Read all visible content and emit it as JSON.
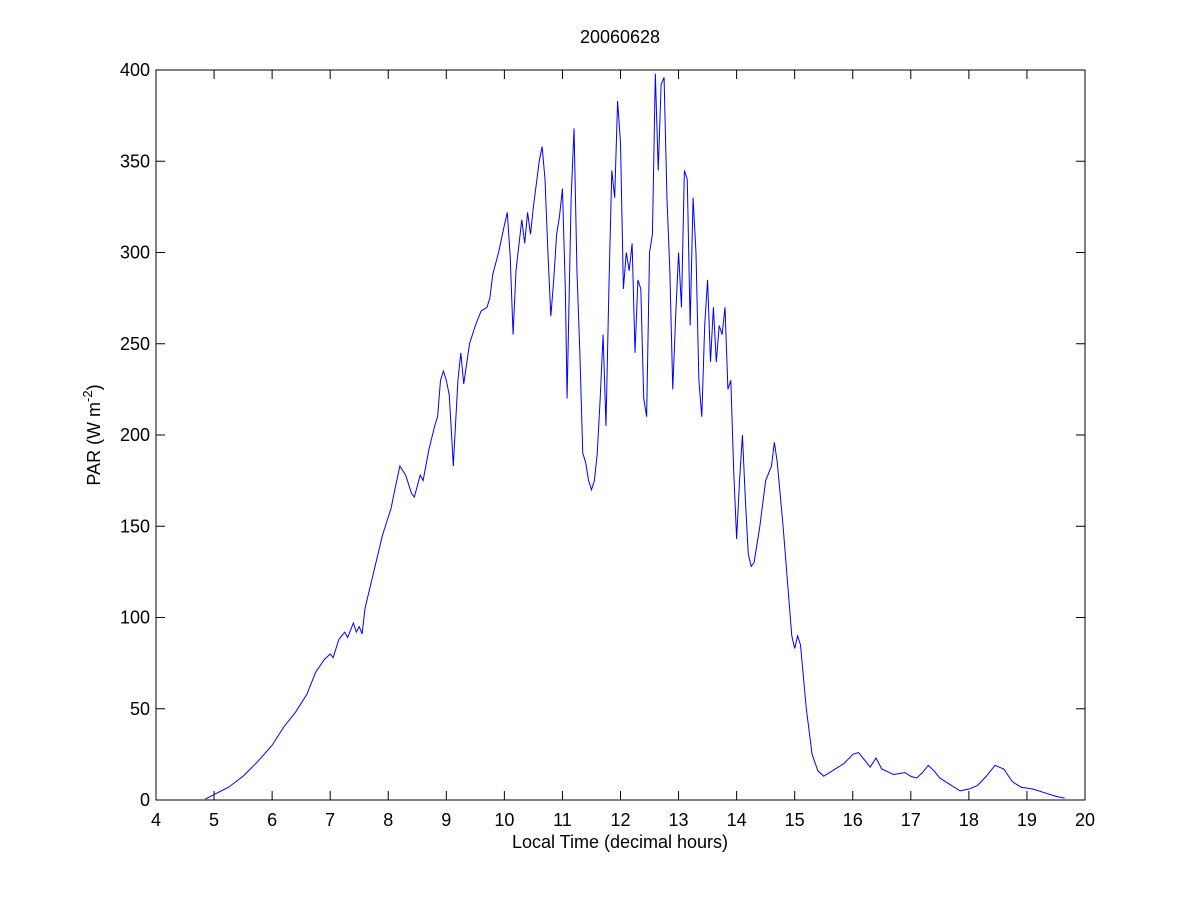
{
  "chart_data": {
    "type": "line",
    "title": "20060628",
    "xlabel": "Local Time (decimal hours)",
    "ylabel": [
      "PAR (W m",
      "-2",
      ")"
    ],
    "color": "#0000ff",
    "xlim": [
      4,
      20
    ],
    "xticks": [
      4,
      5,
      6,
      7,
      8,
      9,
      10,
      11,
      12,
      13,
      14,
      15,
      16,
      17,
      18,
      19,
      20
    ],
    "ylim": [
      0,
      400
    ],
    "yticks": [
      0,
      50,
      100,
      150,
      200,
      250,
      300,
      350,
      400
    ],
    "x": [
      4.85,
      5.0,
      5.25,
      5.5,
      5.75,
      6.0,
      6.2,
      6.4,
      6.6,
      6.75,
      6.9,
      7.0,
      7.05,
      7.15,
      7.25,
      7.3,
      7.4,
      7.45,
      7.5,
      7.55,
      7.6,
      7.75,
      7.9,
      8.0,
      8.05,
      8.1,
      8.2,
      8.3,
      8.4,
      8.45,
      8.55,
      8.6,
      8.7,
      8.8,
      8.85,
      8.9,
      8.95,
      9.0,
      9.05,
      9.1,
      9.12,
      9.2,
      9.25,
      9.3,
      9.4,
      9.5,
      9.6,
      9.7,
      9.75,
      9.8,
      9.9,
      10.0,
      10.05,
      10.1,
      10.15,
      10.2,
      10.3,
      10.35,
      10.4,
      10.45,
      10.5,
      10.6,
      10.65,
      10.7,
      10.75,
      10.8,
      10.85,
      10.9,
      10.95,
      11.0,
      11.05,
      11.08,
      11.15,
      11.2,
      11.25,
      11.3,
      11.35,
      11.4,
      11.45,
      11.5,
      11.55,
      11.6,
      11.65,
      11.7,
      11.75,
      11.8,
      11.85,
      11.9,
      11.95,
      12.0,
      12.05,
      12.1,
      12.15,
      12.2,
      12.25,
      12.3,
      12.35,
      12.4,
      12.45,
      12.5,
      12.55,
      12.6,
      12.65,
      12.7,
      12.75,
      12.8,
      12.85,
      12.9,
      12.95,
      13.0,
      13.05,
      13.1,
      13.15,
      13.2,
      13.25,
      13.3,
      13.35,
      13.4,
      13.45,
      13.5,
      13.55,
      13.6,
      13.65,
      13.7,
      13.75,
      13.8,
      13.85,
      13.9,
      13.95,
      14.0,
      14.05,
      14.1,
      14.15,
      14.2,
      14.25,
      14.3,
      14.35,
      14.4,
      14.5,
      14.6,
      14.65,
      14.7,
      14.8,
      14.9,
      14.95,
      15.0,
      15.05,
      15.1,
      15.2,
      15.3,
      15.4,
      15.5,
      15.7,
      15.85,
      16.0,
      16.1,
      16.2,
      16.3,
      16.4,
      16.5,
      16.7,
      16.9,
      17.0,
      17.1,
      17.2,
      17.3,
      17.4,
      17.5,
      17.7,
      17.85,
      18.0,
      18.15,
      18.3,
      18.45,
      18.6,
      18.75,
      18.9,
      19.1,
      19.3,
      19.5,
      19.65
    ],
    "values": [
      0.5,
      3,
      7,
      13,
      21,
      30,
      40,
      48,
      58,
      70,
      77,
      80,
      78,
      88,
      92,
      89,
      97,
      92,
      95,
      91,
      105,
      125,
      145,
      155,
      160,
      168,
      183,
      178,
      168,
      166,
      178,
      175,
      192,
      205,
      210,
      230,
      235,
      230,
      222,
      195,
      183,
      230,
      245,
      228,
      250,
      260,
      268,
      270,
      275,
      288,
      300,
      315,
      322,
      298,
      255,
      290,
      318,
      305,
      322,
      310,
      325,
      350,
      358,
      340,
      300,
      265,
      285,
      310,
      320,
      335,
      280,
      220,
      330,
      368,
      290,
      245,
      190,
      185,
      175,
      170,
      175,
      190,
      220,
      255,
      205,
      280,
      345,
      330,
      383,
      360,
      280,
      300,
      290,
      305,
      245,
      285,
      280,
      220,
      210,
      300,
      310,
      398,
      345,
      392,
      396,
      330,
      290,
      225,
      265,
      300,
      270,
      345,
      340,
      260,
      330,
      300,
      230,
      210,
      260,
      285,
      240,
      270,
      240,
      260,
      255,
      270,
      225,
      230,
      180,
      143,
      175,
      200,
      165,
      135,
      128,
      130,
      140,
      150,
      175,
      183,
      196,
      185,
      150,
      110,
      90,
      83,
      90,
      85,
      50,
      25,
      16,
      13,
      17,
      20,
      25,
      26,
      22,
      18,
      23,
      17,
      14,
      15,
      13,
      12,
      15,
      19,
      16,
      12,
      8,
      5,
      6,
      8,
      13,
      19,
      17,
      10,
      7,
      6,
      4,
      2,
      1
    ]
  }
}
